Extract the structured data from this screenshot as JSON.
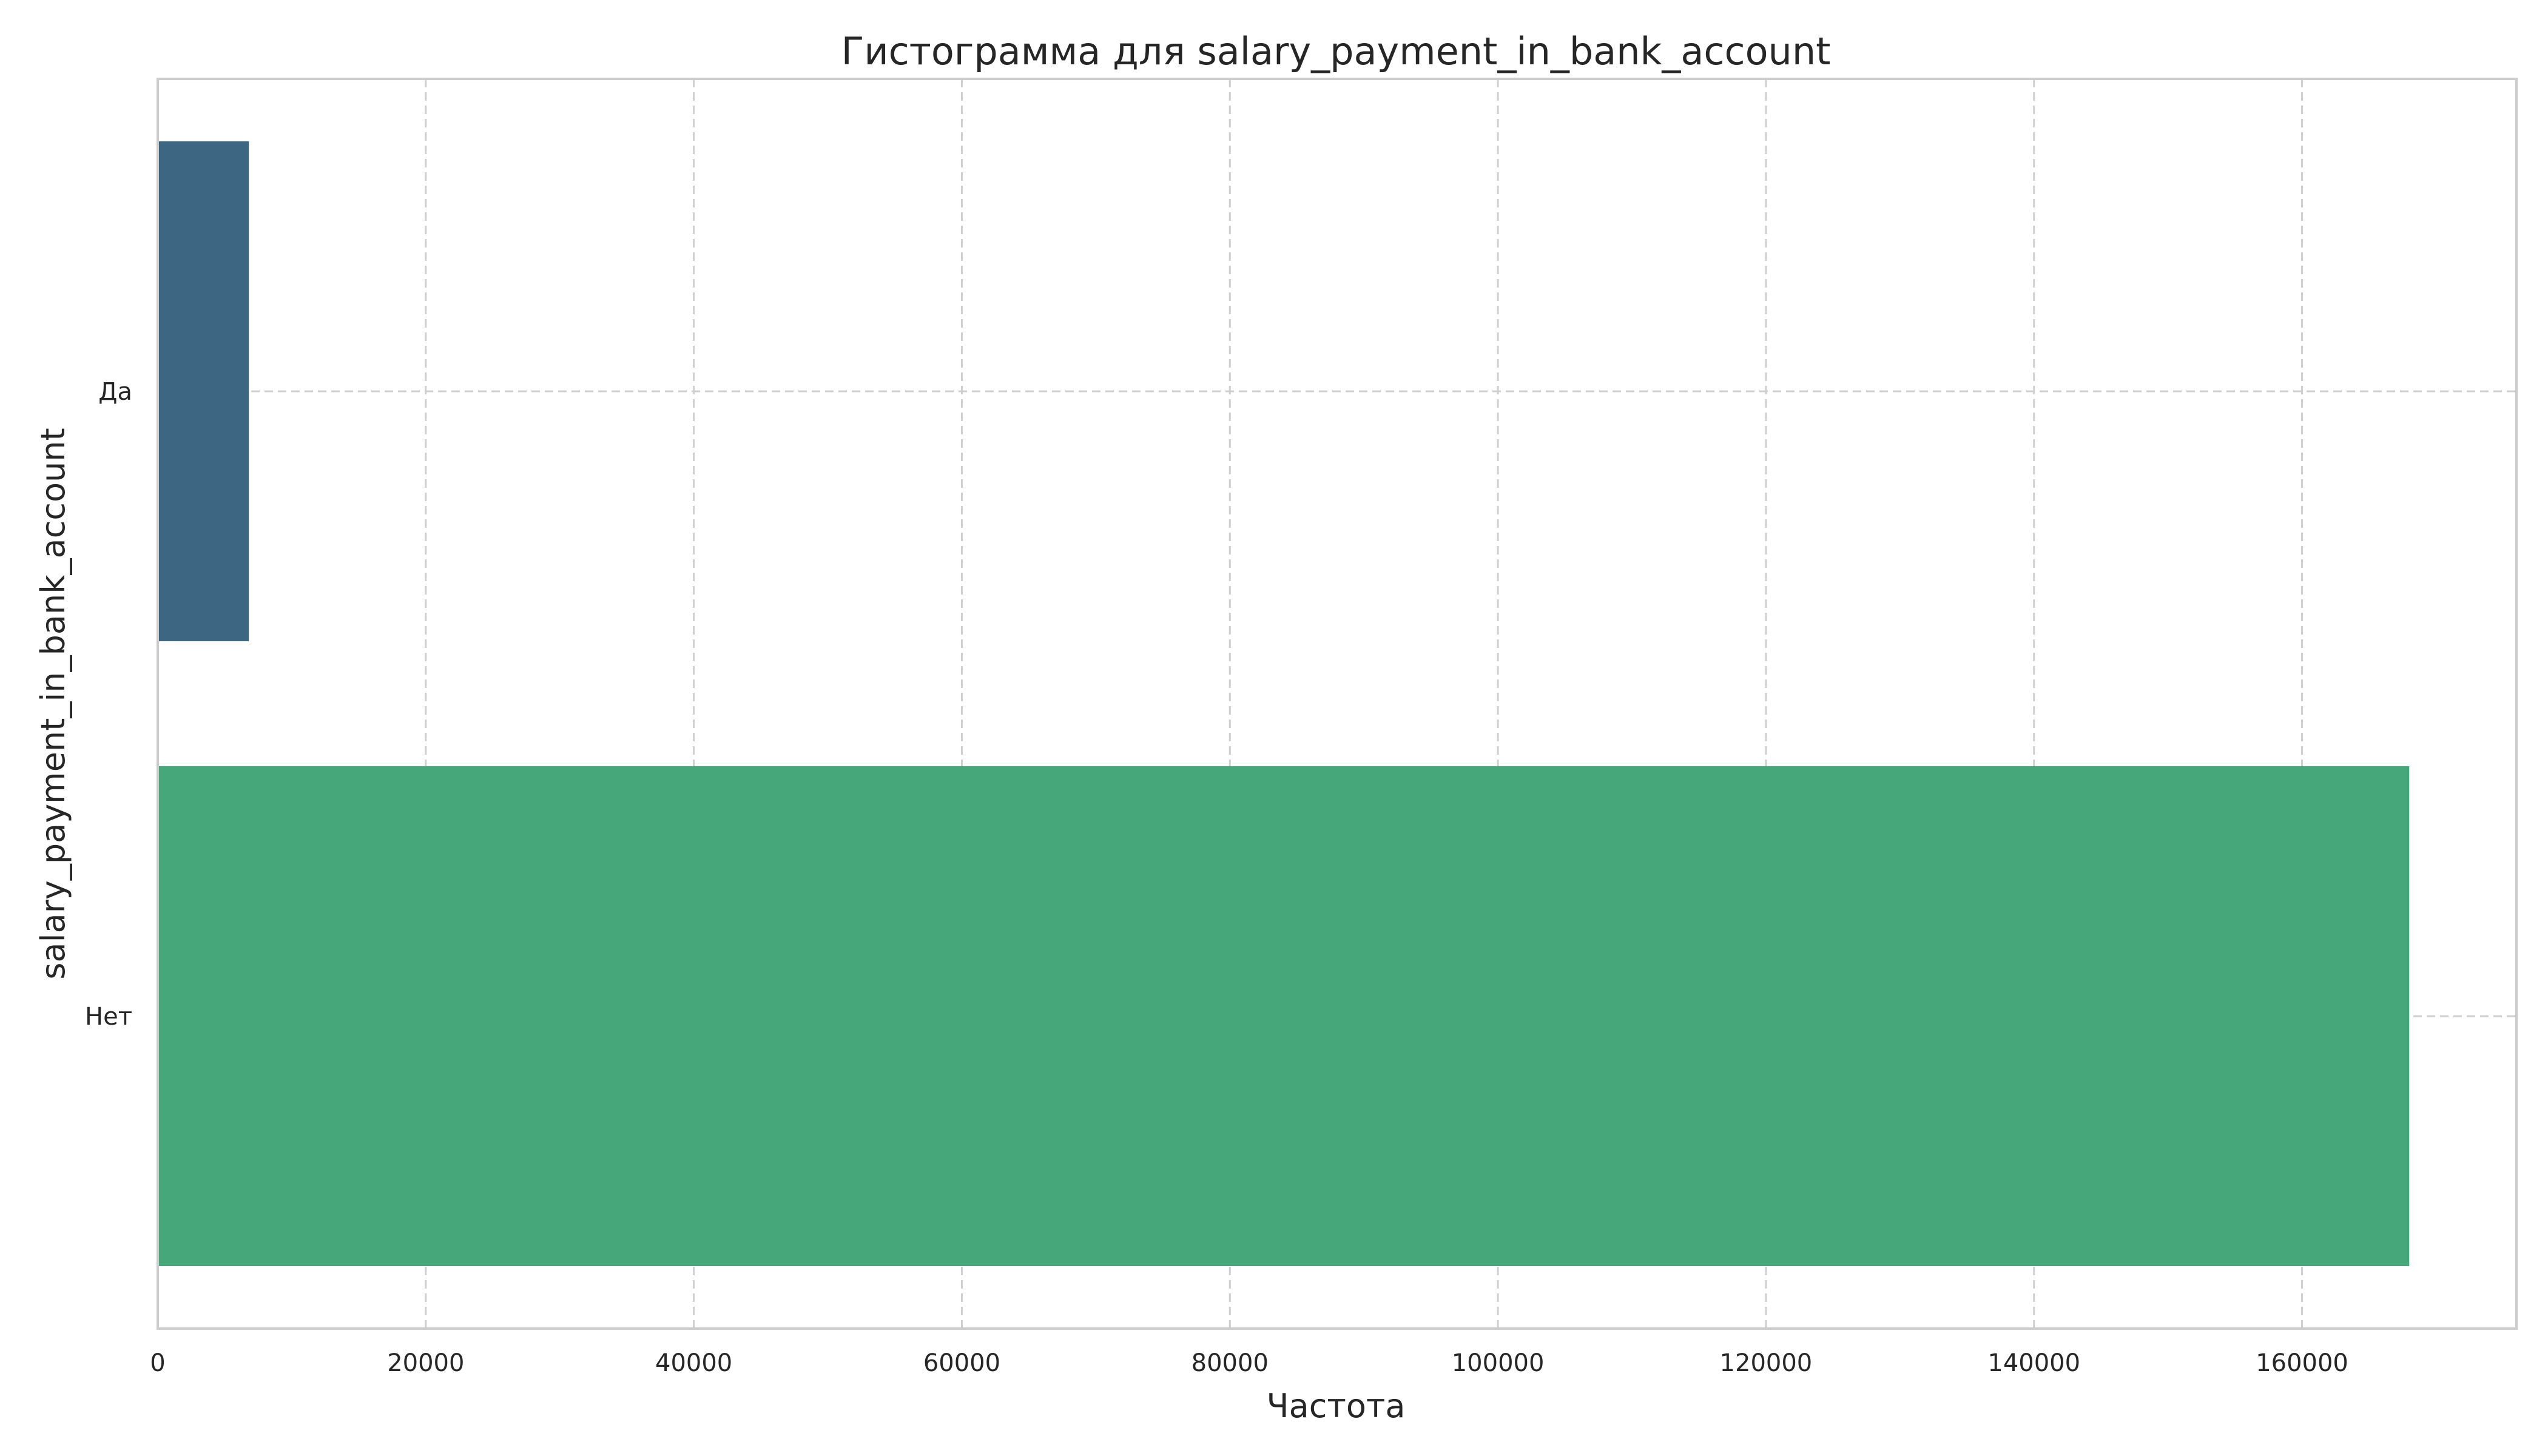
{
  "chart_data": {
    "type": "bar",
    "orientation": "horizontal",
    "title": "Гистограмма для salary_payment_in_bank_account",
    "xlabel": "Частота",
    "ylabel": "salary_payment_in_bank_account",
    "categories": [
      "Да",
      "Нет"
    ],
    "values": [
      6800,
      168000
    ],
    "colors": [
      "#3d6682",
      "#46a87a"
    ],
    "xlim": [
      0,
      176000
    ],
    "xticks": [
      0,
      20000,
      40000,
      60000,
      80000,
      100000,
      120000,
      140000,
      160000
    ],
    "xtick_labels": [
      "0",
      "20000",
      "40000",
      "60000",
      "80000",
      "100000",
      "120000",
      "140000",
      "160000"
    ],
    "grid": true,
    "grid_style": "dashed",
    "legend": "none"
  }
}
